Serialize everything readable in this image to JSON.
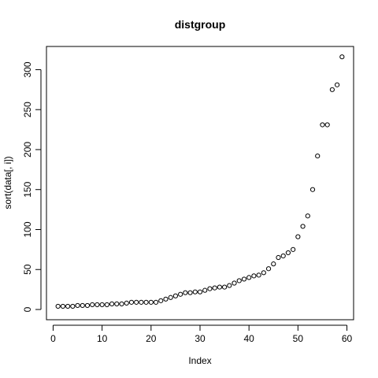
{
  "chart_data": {
    "type": "scatter",
    "title": "distgroup",
    "xlabel": "Index",
    "ylabel": "sort(data[, i])",
    "xlim": [
      -1.36,
      61.36
    ],
    "ylim": [
      -12.8,
      329.0
    ],
    "xticks": [
      0,
      10,
      20,
      30,
      40,
      50,
      60
    ],
    "yticks": [
      0,
      50,
      100,
      150,
      200,
      250,
      300
    ],
    "grid": false,
    "marker": "open-circle",
    "point_color": "#000000",
    "series": [
      {
        "x": [
          1,
          2,
          3,
          4,
          5,
          6,
          7,
          8,
          9,
          10,
          11,
          12,
          13,
          14,
          15,
          16,
          17,
          18,
          19,
          20,
          21,
          22,
          23,
          24,
          25,
          26,
          27,
          28,
          29,
          30,
          31,
          32,
          33,
          34,
          35,
          36,
          37,
          38,
          39,
          40,
          41,
          42,
          43,
          44,
          45,
          46,
          47,
          48,
          49,
          50,
          51,
          52,
          53,
          54,
          55,
          56,
          57,
          58,
          59
        ],
        "y": [
          4,
          4,
          4,
          4,
          5,
          5,
          5,
          6,
          6,
          6,
          6,
          7,
          7,
          7,
          8,
          9,
          9,
          9,
          9,
          9,
          9,
          11,
          13,
          15,
          17,
          19,
          21,
          21,
          22,
          22,
          24,
          26,
          27,
          28,
          28,
          30,
          33,
          36,
          38,
          40,
          42,
          43,
          46,
          51,
          57,
          65,
          67,
          71,
          75,
          91,
          104,
          117,
          150,
          192,
          231,
          231,
          275,
          281,
          316
        ]
      }
    ]
  }
}
